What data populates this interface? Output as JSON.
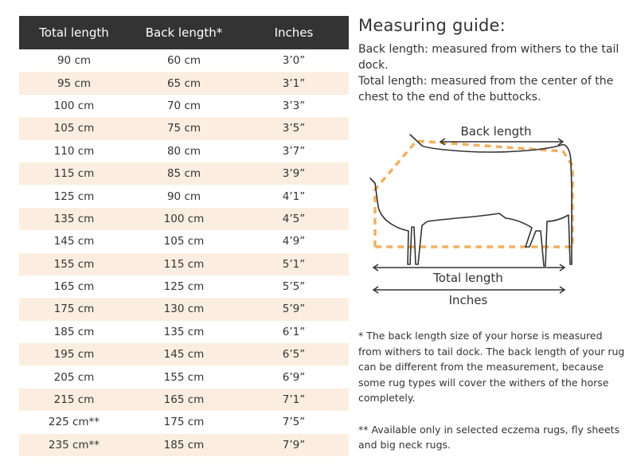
{
  "table": {
    "headers": [
      "Total length",
      "Back length*",
      "Inches"
    ],
    "rows": [
      [
        "90 cm",
        "60 cm",
        "3’0”"
      ],
      [
        "95 cm",
        "65 cm",
        "3’1”"
      ],
      [
        "100 cm",
        "70 cm",
        "3’3”"
      ],
      [
        "105 cm",
        "75 cm",
        "3’5”"
      ],
      [
        "110 cm",
        "80 cm",
        "3’7”"
      ],
      [
        "115 cm",
        "85 cm",
        "3’9”"
      ],
      [
        "125 cm",
        "90 cm",
        "4’1”"
      ],
      [
        "135 cm",
        "100 cm",
        "4’5”"
      ],
      [
        "145 cm",
        "105 cm",
        "4’9”"
      ],
      [
        "155 cm",
        "115 cm",
        "5’1”"
      ],
      [
        "165 cm",
        "125 cm",
        "5’5”"
      ],
      [
        "175 cm",
        "130 cm",
        "5’9”"
      ],
      [
        "185 cm",
        "135 cm",
        "6’1”"
      ],
      [
        "195 cm",
        "145 cm",
        "6’5”"
      ],
      [
        "205 cm",
        "155 cm",
        "6’9”"
      ],
      [
        "215 cm",
        "165 cm",
        "7’1”"
      ],
      [
        "225 cm**",
        "175 cm",
        "7’5”"
      ],
      [
        "235 cm**",
        "185 cm",
        "7’9”"
      ]
    ]
  },
  "guide": {
    "title": "Measuring guide:",
    "back_length_text": "Back length: measured from withers to the tail dock.",
    "total_length_text": "Total length: measured from the center of the chest to the end of the buttocks."
  },
  "diagram": {
    "back_length_label": "Back length",
    "total_length_label": "Total length",
    "inches_label": "Inches"
  },
  "notes": {
    "note1": "* The back length size of your horse is measured from withers to tail dock. The back length of your rug can be different from the measurement, because some rug types will cover the withers of the horse completely.",
    "note2": "** Available only in selected eczema rugs, fly sheets and big neck rugs."
  },
  "colors": {
    "header_bg": "#333333",
    "row_alt_bg": "#fbeee1",
    "dashed_accent": "#f0b060",
    "text": "#333333"
  }
}
